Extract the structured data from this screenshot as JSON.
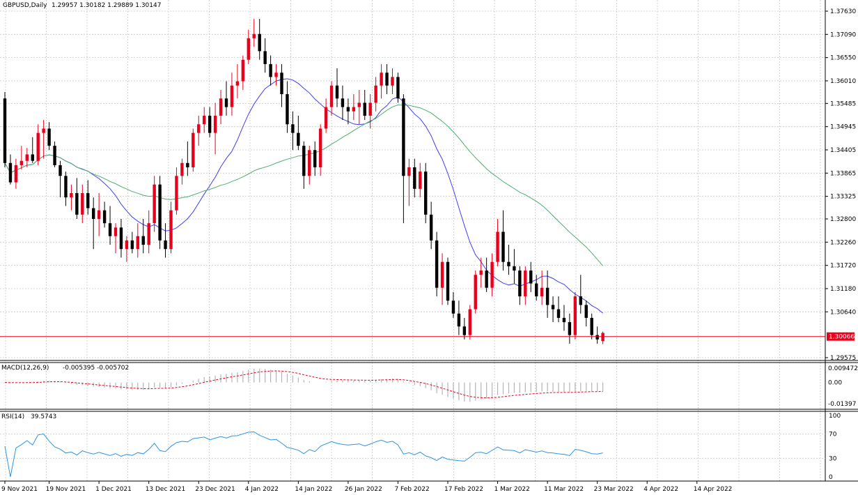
{
  "header": {
    "symbol_label": "GBPUSD,Daily",
    "ohlc_label": "1.29957 1.30182 1.29889 1.30147"
  },
  "colors": {
    "bull": "#e8001c",
    "bear": "#000000",
    "ma_fast": "#3d3dff",
    "ma_slow": "#4caf70",
    "grid": "#c8c8c8",
    "price_line": "#e8001c",
    "macd_hist": "#b4b4b4",
    "macd_signal": "#e8001c",
    "rsi_line": "#2b95e6"
  },
  "chart_data": [
    {
      "type": "candlestick",
      "title": "GBPUSD,Daily",
      "ylim": [
        1.29575,
        1.3763
      ],
      "y_ticks": [
        "1.37630",
        "1.37090",
        "1.36550",
        "1.36010",
        "1.35485",
        "1.34945",
        "1.34405",
        "1.33865",
        "1.33325",
        "1.32800",
        "1.32260",
        "1.31720",
        "1.31180",
        "1.30640",
        "1.29575"
      ],
      "x_tick_labels": [
        "9 Nov 2021",
        "19 Nov 2021",
        "1 Dec 2021",
        "13 Dec 2021",
        "23 Dec 2021",
        "4 Jan 2022",
        "14 Jan 2022",
        "26 Jan 2022",
        "7 Feb 2022",
        "17 Feb 2022",
        "1 Mar 2022",
        "11 Mar 2022",
        "23 Mar 2022",
        "4 Apr 2022",
        "14 Apr 2022"
      ],
      "x_tick_index": [
        0,
        8,
        17,
        26,
        35,
        44,
        53,
        62,
        71,
        80,
        89,
        98,
        107,
        116,
        125
      ],
      "current_price_label": "1.30066",
      "current_price": 1.30066,
      "ohlc": [
        [
          1.356,
          1.3575,
          1.34,
          1.341
        ],
        [
          1.341,
          1.343,
          1.336,
          1.3365
        ],
        [
          1.3365,
          1.342,
          1.335,
          1.3405
        ],
        [
          1.3405,
          1.345,
          1.3395,
          1.3415
        ],
        [
          1.3415,
          1.3445,
          1.34,
          1.343
        ],
        [
          1.343,
          1.347,
          1.341,
          1.3415
        ],
        [
          1.3415,
          1.35,
          1.3405,
          1.348
        ],
        [
          1.348,
          1.351,
          1.342,
          1.349
        ],
        [
          1.349,
          1.3505,
          1.344,
          1.345
        ],
        [
          1.345,
          1.346,
          1.34,
          1.3405
        ],
        [
          1.3405,
          1.3415,
          1.333,
          1.338
        ],
        [
          1.338,
          1.339,
          1.331,
          1.333
        ],
        [
          1.333,
          1.336,
          1.33,
          1.334
        ],
        [
          1.334,
          1.3375,
          1.328,
          1.329
        ],
        [
          1.329,
          1.336,
          1.327,
          1.334
        ],
        [
          1.334,
          1.337,
          1.329,
          1.3305
        ],
        [
          1.3305,
          1.333,
          1.321,
          1.328
        ],
        [
          1.328,
          1.334,
          1.324,
          1.33
        ],
        [
          1.33,
          1.332,
          1.326,
          1.327
        ],
        [
          1.327,
          1.331,
          1.322,
          1.324
        ],
        [
          1.324,
          1.327,
          1.32,
          1.326
        ],
        [
          1.326,
          1.328,
          1.319,
          1.321
        ],
        [
          1.321,
          1.324,
          1.318,
          1.323
        ],
        [
          1.323,
          1.325,
          1.32,
          1.321
        ],
        [
          1.321,
          1.327,
          1.319,
          1.324
        ],
        [
          1.324,
          1.328,
          1.32,
          1.322
        ],
        [
          1.322,
          1.33,
          1.32,
          1.327
        ],
        [
          1.327,
          1.338,
          1.325,
          1.336
        ],
        [
          1.336,
          1.338,
          1.321,
          1.323
        ],
        [
          1.323,
          1.327,
          1.319,
          1.321
        ],
        [
          1.321,
          1.332,
          1.32,
          1.33
        ],
        [
          1.33,
          1.34,
          1.329,
          1.338
        ],
        [
          1.338,
          1.342,
          1.336,
          1.341
        ],
        [
          1.341,
          1.346,
          1.338,
          1.34
        ],
        [
          1.34,
          1.349,
          1.339,
          1.348
        ],
        [
          1.348,
          1.352,
          1.345,
          1.35
        ],
        [
          1.35,
          1.354,
          1.348,
          1.352
        ],
        [
          1.352,
          1.354,
          1.347,
          1.348
        ],
        [
          1.348,
          1.355,
          1.343,
          1.352
        ],
        [
          1.352,
          1.358,
          1.35,
          1.356
        ],
        [
          1.356,
          1.36,
          1.352,
          1.354
        ],
        [
          1.354,
          1.362,
          1.352,
          1.359
        ],
        [
          1.359,
          1.364,
          1.356,
          1.36
        ],
        [
          1.36,
          1.366,
          1.358,
          1.365
        ],
        [
          1.365,
          1.372,
          1.364,
          1.37
        ],
        [
          1.37,
          1.3745,
          1.368,
          1.371
        ],
        [
          1.371,
          1.3745,
          1.365,
          1.367
        ],
        [
          1.367,
          1.37,
          1.362,
          1.364
        ],
        [
          1.364,
          1.366,
          1.359,
          1.361
        ],
        [
          1.361,
          1.364,
          1.359,
          1.362
        ],
        [
          1.362,
          1.364,
          1.354,
          1.357
        ],
        [
          1.357,
          1.36,
          1.348,
          1.35
        ],
        [
          1.35,
          1.353,
          1.344,
          1.348
        ],
        [
          1.348,
          1.352,
          1.344,
          1.345
        ],
        [
          1.345,
          1.346,
          1.335,
          1.338
        ],
        [
          1.338,
          1.345,
          1.336,
          1.344
        ],
        [
          1.344,
          1.346,
          1.338,
          1.34
        ],
        [
          1.34,
          1.35,
          1.338,
          1.349
        ],
        [
          1.349,
          1.356,
          1.348,
          1.354
        ],
        [
          1.354,
          1.36,
          1.352,
          1.359
        ],
        [
          1.359,
          1.363,
          1.354,
          1.356
        ],
        [
          1.356,
          1.359,
          1.351,
          1.354
        ],
        [
          1.354,
          1.356,
          1.35,
          1.353
        ],
        [
          1.353,
          1.357,
          1.351,
          1.354
        ],
        [
          1.354,
          1.358,
          1.35,
          1.355
        ],
        [
          1.355,
          1.358,
          1.351,
          1.352
        ],
        [
          1.352,
          1.357,
          1.349,
          1.355
        ],
        [
          1.355,
          1.361,
          1.353,
          1.359
        ],
        [
          1.359,
          1.364,
          1.356,
          1.362
        ],
        [
          1.362,
          1.364,
          1.357,
          1.359
        ],
        [
          1.359,
          1.363,
          1.357,
          1.361
        ],
        [
          1.361,
          1.362,
          1.355,
          1.356
        ],
        [
          1.356,
          1.357,
          1.327,
          1.338
        ],
        [
          1.338,
          1.342,
          1.331,
          1.34
        ],
        [
          1.34,
          1.342,
          1.333,
          1.335
        ],
        [
          1.335,
          1.341,
          1.333,
          1.339
        ],
        [
          1.339,
          1.341,
          1.327,
          1.329
        ],
        [
          1.329,
          1.332,
          1.321,
          1.323
        ],
        [
          1.323,
          1.325,
          1.31,
          1.312
        ],
        [
          1.312,
          1.32,
          1.308,
          1.318
        ],
        [
          1.318,
          1.319,
          1.308,
          1.309
        ],
        [
          1.309,
          1.311,
          1.305,
          1.306
        ],
        [
          1.306,
          1.309,
          1.301,
          1.303
        ],
        [
          1.303,
          1.305,
          1.3,
          1.301
        ],
        [
          1.301,
          1.308,
          1.3,
          1.307
        ],
        [
          1.307,
          1.316,
          1.306,
          1.315
        ],
        [
          1.315,
          1.319,
          1.312,
          1.316
        ],
        [
          1.316,
          1.319,
          1.311,
          1.312
        ],
        [
          1.312,
          1.32,
          1.31,
          1.318
        ],
        [
          1.318,
          1.328,
          1.317,
          1.325
        ],
        [
          1.325,
          1.33,
          1.316,
          1.318
        ],
        [
          1.318,
          1.322,
          1.315,
          1.317
        ],
        [
          1.317,
          1.321,
          1.313,
          1.316
        ],
        [
          1.316,
          1.317,
          1.308,
          1.31
        ],
        [
          1.31,
          1.317,
          1.308,
          1.316
        ],
        [
          1.316,
          1.318,
          1.311,
          1.313
        ],
        [
          1.313,
          1.315,
          1.309,
          1.31
        ],
        [
          1.31,
          1.316,
          1.308,
          1.312
        ],
        [
          1.312,
          1.316,
          1.305,
          1.308
        ],
        [
          1.308,
          1.31,
          1.304,
          1.307
        ],
        [
          1.307,
          1.31,
          1.304,
          1.305
        ],
        [
          1.305,
          1.308,
          1.302,
          1.304
        ],
        [
          1.304,
          1.306,
          1.299,
          1.301
        ],
        [
          1.301,
          1.311,
          1.3,
          1.31
        ],
        [
          1.31,
          1.315,
          1.306,
          1.308
        ],
        [
          1.308,
          1.309,
          1.303,
          1.305
        ],
        [
          1.305,
          1.306,
          1.3,
          1.301
        ],
        [
          1.301,
          1.303,
          1.299,
          1.3
        ],
        [
          1.2996,
          1.3018,
          1.2989,
          1.3015
        ]
      ]
    },
    {
      "type": "line",
      "title": "MACD(12,26,9)",
      "values_label": "-0.005395 -0.005702",
      "y_ticks": [
        "0.009472",
        "0.00",
        "-0.01397"
      ],
      "ylim": [
        -0.01397,
        0.009472
      ]
    },
    {
      "type": "line",
      "title": "RSI(14)",
      "values_label": "39.5743",
      "y_ticks": [
        "100",
        "70",
        "30",
        "0"
      ],
      "ylim": [
        0,
        100
      ]
    }
  ]
}
